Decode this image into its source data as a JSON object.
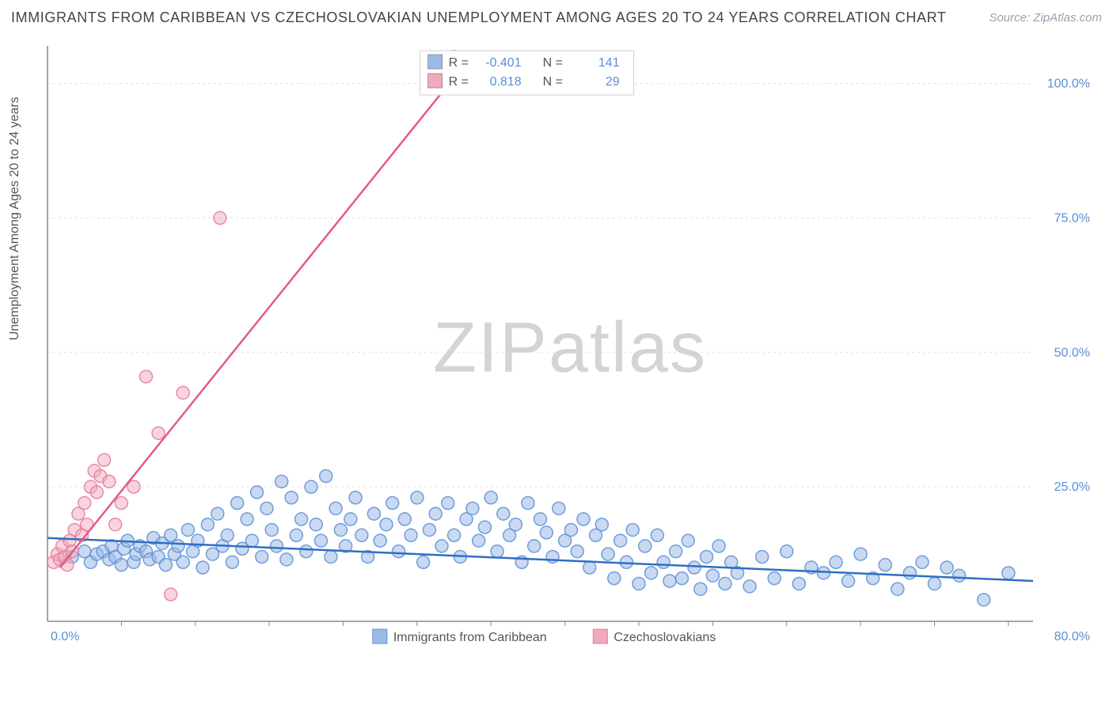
{
  "title": "IMMIGRANTS FROM CARIBBEAN VS CZECHOSLOVAKIAN UNEMPLOYMENT AMONG AGES 20 TO 24 YEARS CORRELATION CHART",
  "source_label": "Source: ZipAtlas.com",
  "ylabel": "Unemployment Among Ages 20 to 24 years",
  "watermark_bold": "ZIP",
  "watermark_thin": "atlas",
  "chart": {
    "type": "scatter",
    "background_color": "#ffffff",
    "grid_color": "#e3e3e3",
    "axis_color": "#888888",
    "tick_label_color": "#5a8fd6",
    "tick_fontsize": 16,
    "xlim": [
      0,
      80
    ],
    "ylim": [
      0,
      107
    ],
    "yticks": [
      25,
      50,
      75,
      100
    ],
    "ytick_labels": [
      "25.0%",
      "50.0%",
      "75.0%",
      "100.0%"
    ],
    "xticks": [
      0,
      80
    ],
    "xtick_labels": [
      "0.0%",
      "80.0%"
    ],
    "x_minor_ticks": [
      6,
      12,
      18,
      24,
      30,
      36,
      42,
      48,
      54,
      60,
      66,
      72,
      78
    ],
    "marker_radius": 8,
    "marker_stroke_width": 1.5,
    "line_width": 2.5
  },
  "stats_box": {
    "border_color": "#d0d0d0",
    "bg_color": "#ffffff",
    "label_color": "#555555",
    "value_color": "#5a8fd6",
    "rows": [
      {
        "swatch": "#9db9e6",
        "R": "-0.401",
        "N": "141"
      },
      {
        "swatch": "#f1a9bd",
        "R": "0.818",
        "N": "29"
      }
    ]
  },
  "bottom_legend": {
    "items": [
      {
        "swatch": "#9db9e6",
        "stroke": "#5a8fd6",
        "label": "Immigrants from Caribbean"
      },
      {
        "swatch": "#f1a9bd",
        "stroke": "#e47a98",
        "label": "Czechoslovakians"
      }
    ],
    "text_color": "#555555"
  },
  "series": [
    {
      "name": "Immigrants from Caribbean",
      "color_fill": "#9db9e6",
      "color_stroke": "#5a8fd6",
      "opacity": 0.55,
      "regression": {
        "x1": 0,
        "y1": 15.5,
        "x2": 80,
        "y2": 7.5,
        "color": "#2f6fc4"
      },
      "points": [
        [
          2,
          12
        ],
        [
          3,
          13
        ],
        [
          3.5,
          11
        ],
        [
          4,
          12.5
        ],
        [
          4.5,
          13
        ],
        [
          5,
          11.5
        ],
        [
          5.2,
          14
        ],
        [
          5.5,
          12
        ],
        [
          6,
          10.5
        ],
        [
          6.2,
          13.5
        ],
        [
          6.5,
          15
        ],
        [
          7,
          11
        ],
        [
          7.2,
          12.5
        ],
        [
          7.5,
          14
        ],
        [
          8,
          13
        ],
        [
          8.3,
          11.5
        ],
        [
          8.6,
          15.5
        ],
        [
          9,
          12
        ],
        [
          9.3,
          14.5
        ],
        [
          9.6,
          10.5
        ],
        [
          10,
          16
        ],
        [
          10.3,
          12.5
        ],
        [
          10.6,
          14
        ],
        [
          11,
          11
        ],
        [
          11.4,
          17
        ],
        [
          11.8,
          13
        ],
        [
          12.2,
          15
        ],
        [
          12.6,
          10
        ],
        [
          13,
          18
        ],
        [
          13.4,
          12.5
        ],
        [
          13.8,
          20
        ],
        [
          14.2,
          14
        ],
        [
          14.6,
          16
        ],
        [
          15,
          11
        ],
        [
          15.4,
          22
        ],
        [
          15.8,
          13.5
        ],
        [
          16.2,
          19
        ],
        [
          16.6,
          15
        ],
        [
          17,
          24
        ],
        [
          17.4,
          12
        ],
        [
          17.8,
          21
        ],
        [
          18.2,
          17
        ],
        [
          18.6,
          14
        ],
        [
          19,
          26
        ],
        [
          19.4,
          11.5
        ],
        [
          19.8,
          23
        ],
        [
          20.2,
          16
        ],
        [
          20.6,
          19
        ],
        [
          21,
          13
        ],
        [
          21.4,
          25
        ],
        [
          21.8,
          18
        ],
        [
          22.2,
          15
        ],
        [
          22.6,
          27
        ],
        [
          23,
          12
        ],
        [
          23.4,
          21
        ],
        [
          23.8,
          17
        ],
        [
          24.2,
          14
        ],
        [
          24.6,
          19
        ],
        [
          25,
          23
        ],
        [
          25.5,
          16
        ],
        [
          26,
          12
        ],
        [
          26.5,
          20
        ],
        [
          27,
          15
        ],
        [
          27.5,
          18
        ],
        [
          28,
          22
        ],
        [
          28.5,
          13
        ],
        [
          29,
          19
        ],
        [
          29.5,
          16
        ],
        [
          30,
          23
        ],
        [
          30.5,
          11
        ],
        [
          31,
          17
        ],
        [
          31.5,
          20
        ],
        [
          32,
          14
        ],
        [
          32.5,
          22
        ],
        [
          33,
          16
        ],
        [
          33.5,
          12
        ],
        [
          34,
          19
        ],
        [
          34.5,
          21
        ],
        [
          35,
          15
        ],
        [
          35.5,
          17.5
        ],
        [
          36,
          23
        ],
        [
          36.5,
          13
        ],
        [
          37,
          20
        ],
        [
          37.5,
          16
        ],
        [
          38,
          18
        ],
        [
          38.5,
          11
        ],
        [
          39,
          22
        ],
        [
          39.5,
          14
        ],
        [
          40,
          19
        ],
        [
          40.5,
          16.5
        ],
        [
          41,
          12
        ],
        [
          41.5,
          21
        ],
        [
          42,
          15
        ],
        [
          42.5,
          17
        ],
        [
          43,
          13
        ],
        [
          43.5,
          19
        ],
        [
          44,
          10
        ],
        [
          44.5,
          16
        ],
        [
          45,
          18
        ],
        [
          45.5,
          12.5
        ],
        [
          46,
          8
        ],
        [
          46.5,
          15
        ],
        [
          47,
          11
        ],
        [
          47.5,
          17
        ],
        [
          48,
          7
        ],
        [
          48.5,
          14
        ],
        [
          49,
          9
        ],
        [
          49.5,
          16
        ],
        [
          50,
          11
        ],
        [
          50.5,
          7.5
        ],
        [
          51,
          13
        ],
        [
          51.5,
          8
        ],
        [
          52,
          15
        ],
        [
          52.5,
          10
        ],
        [
          53,
          6
        ],
        [
          53.5,
          12
        ],
        [
          54,
          8.5
        ],
        [
          54.5,
          14
        ],
        [
          55,
          7
        ],
        [
          55.5,
          11
        ],
        [
          56,
          9
        ],
        [
          57,
          6.5
        ],
        [
          58,
          12
        ],
        [
          59,
          8
        ],
        [
          60,
          13
        ],
        [
          61,
          7
        ],
        [
          62,
          10
        ],
        [
          63,
          9
        ],
        [
          64,
          11
        ],
        [
          65,
          7.5
        ],
        [
          66,
          12.5
        ],
        [
          67,
          8
        ],
        [
          68,
          10.5
        ],
        [
          69,
          6
        ],
        [
          70,
          9
        ],
        [
          71,
          11
        ],
        [
          72,
          7
        ],
        [
          73,
          10
        ],
        [
          74,
          8.5
        ],
        [
          76,
          4
        ],
        [
          78,
          9
        ]
      ]
    },
    {
      "name": "Czechoslovakians",
      "color_fill": "#f1a9bd",
      "color_stroke": "#e47a98",
      "opacity": 0.5,
      "regression": {
        "x1": 1,
        "y1": 10,
        "x2": 34,
        "y2": 104,
        "color": "#e55a82"
      },
      "points": [
        [
          0.5,
          11
        ],
        [
          0.8,
          12.5
        ],
        [
          1,
          11.5
        ],
        [
          1.2,
          14
        ],
        [
          1.4,
          12
        ],
        [
          1.6,
          10.5
        ],
        [
          1.8,
          15
        ],
        [
          2,
          13
        ],
        [
          2.2,
          17
        ],
        [
          2.5,
          20
        ],
        [
          2.8,
          16
        ],
        [
          3,
          22
        ],
        [
          3.2,
          18
        ],
        [
          3.5,
          25
        ],
        [
          3.8,
          28
        ],
        [
          4,
          24
        ],
        [
          4.3,
          27
        ],
        [
          4.6,
          30
        ],
        [
          5,
          26
        ],
        [
          5.5,
          18
        ],
        [
          6,
          22
        ],
        [
          7,
          25
        ],
        [
          8,
          45.5
        ],
        [
          9,
          35
        ],
        [
          10,
          5
        ],
        [
          11,
          42.5
        ],
        [
          14,
          75
        ],
        [
          32,
          103
        ],
        [
          33,
          105
        ]
      ]
    }
  ]
}
